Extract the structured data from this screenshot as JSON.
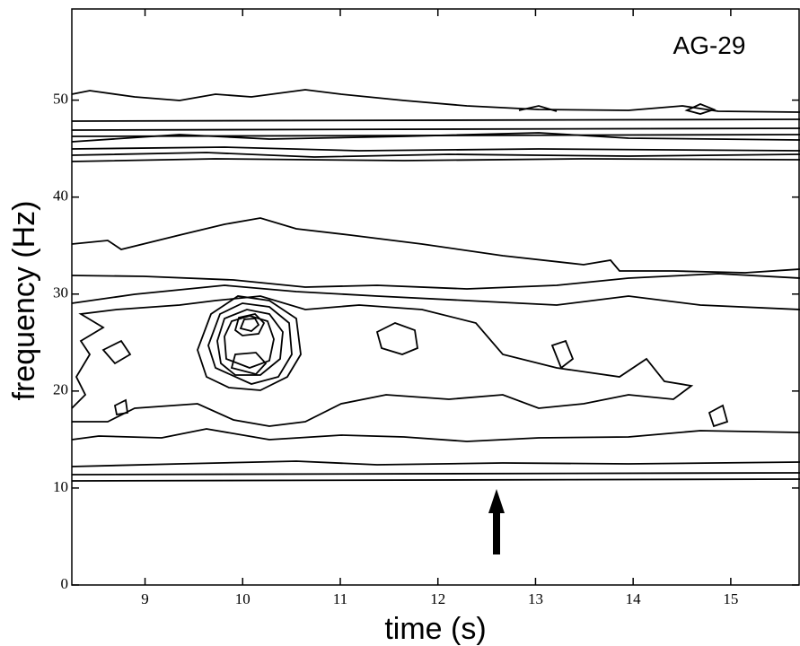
{
  "chart_data": {
    "type": "contour",
    "annotation": "AG-29",
    "x_label": "time (s)",
    "y_label": "frequency (Hz)",
    "xlim": [
      8.25,
      15.7
    ],
    "xticks": [
      9,
      10,
      11,
      12,
      13,
      14,
      15
    ],
    "ylim": [
      0,
      59.4
    ],
    "yticks": [
      0,
      10,
      20,
      30,
      40,
      50
    ],
    "color": "#000000"
  }
}
